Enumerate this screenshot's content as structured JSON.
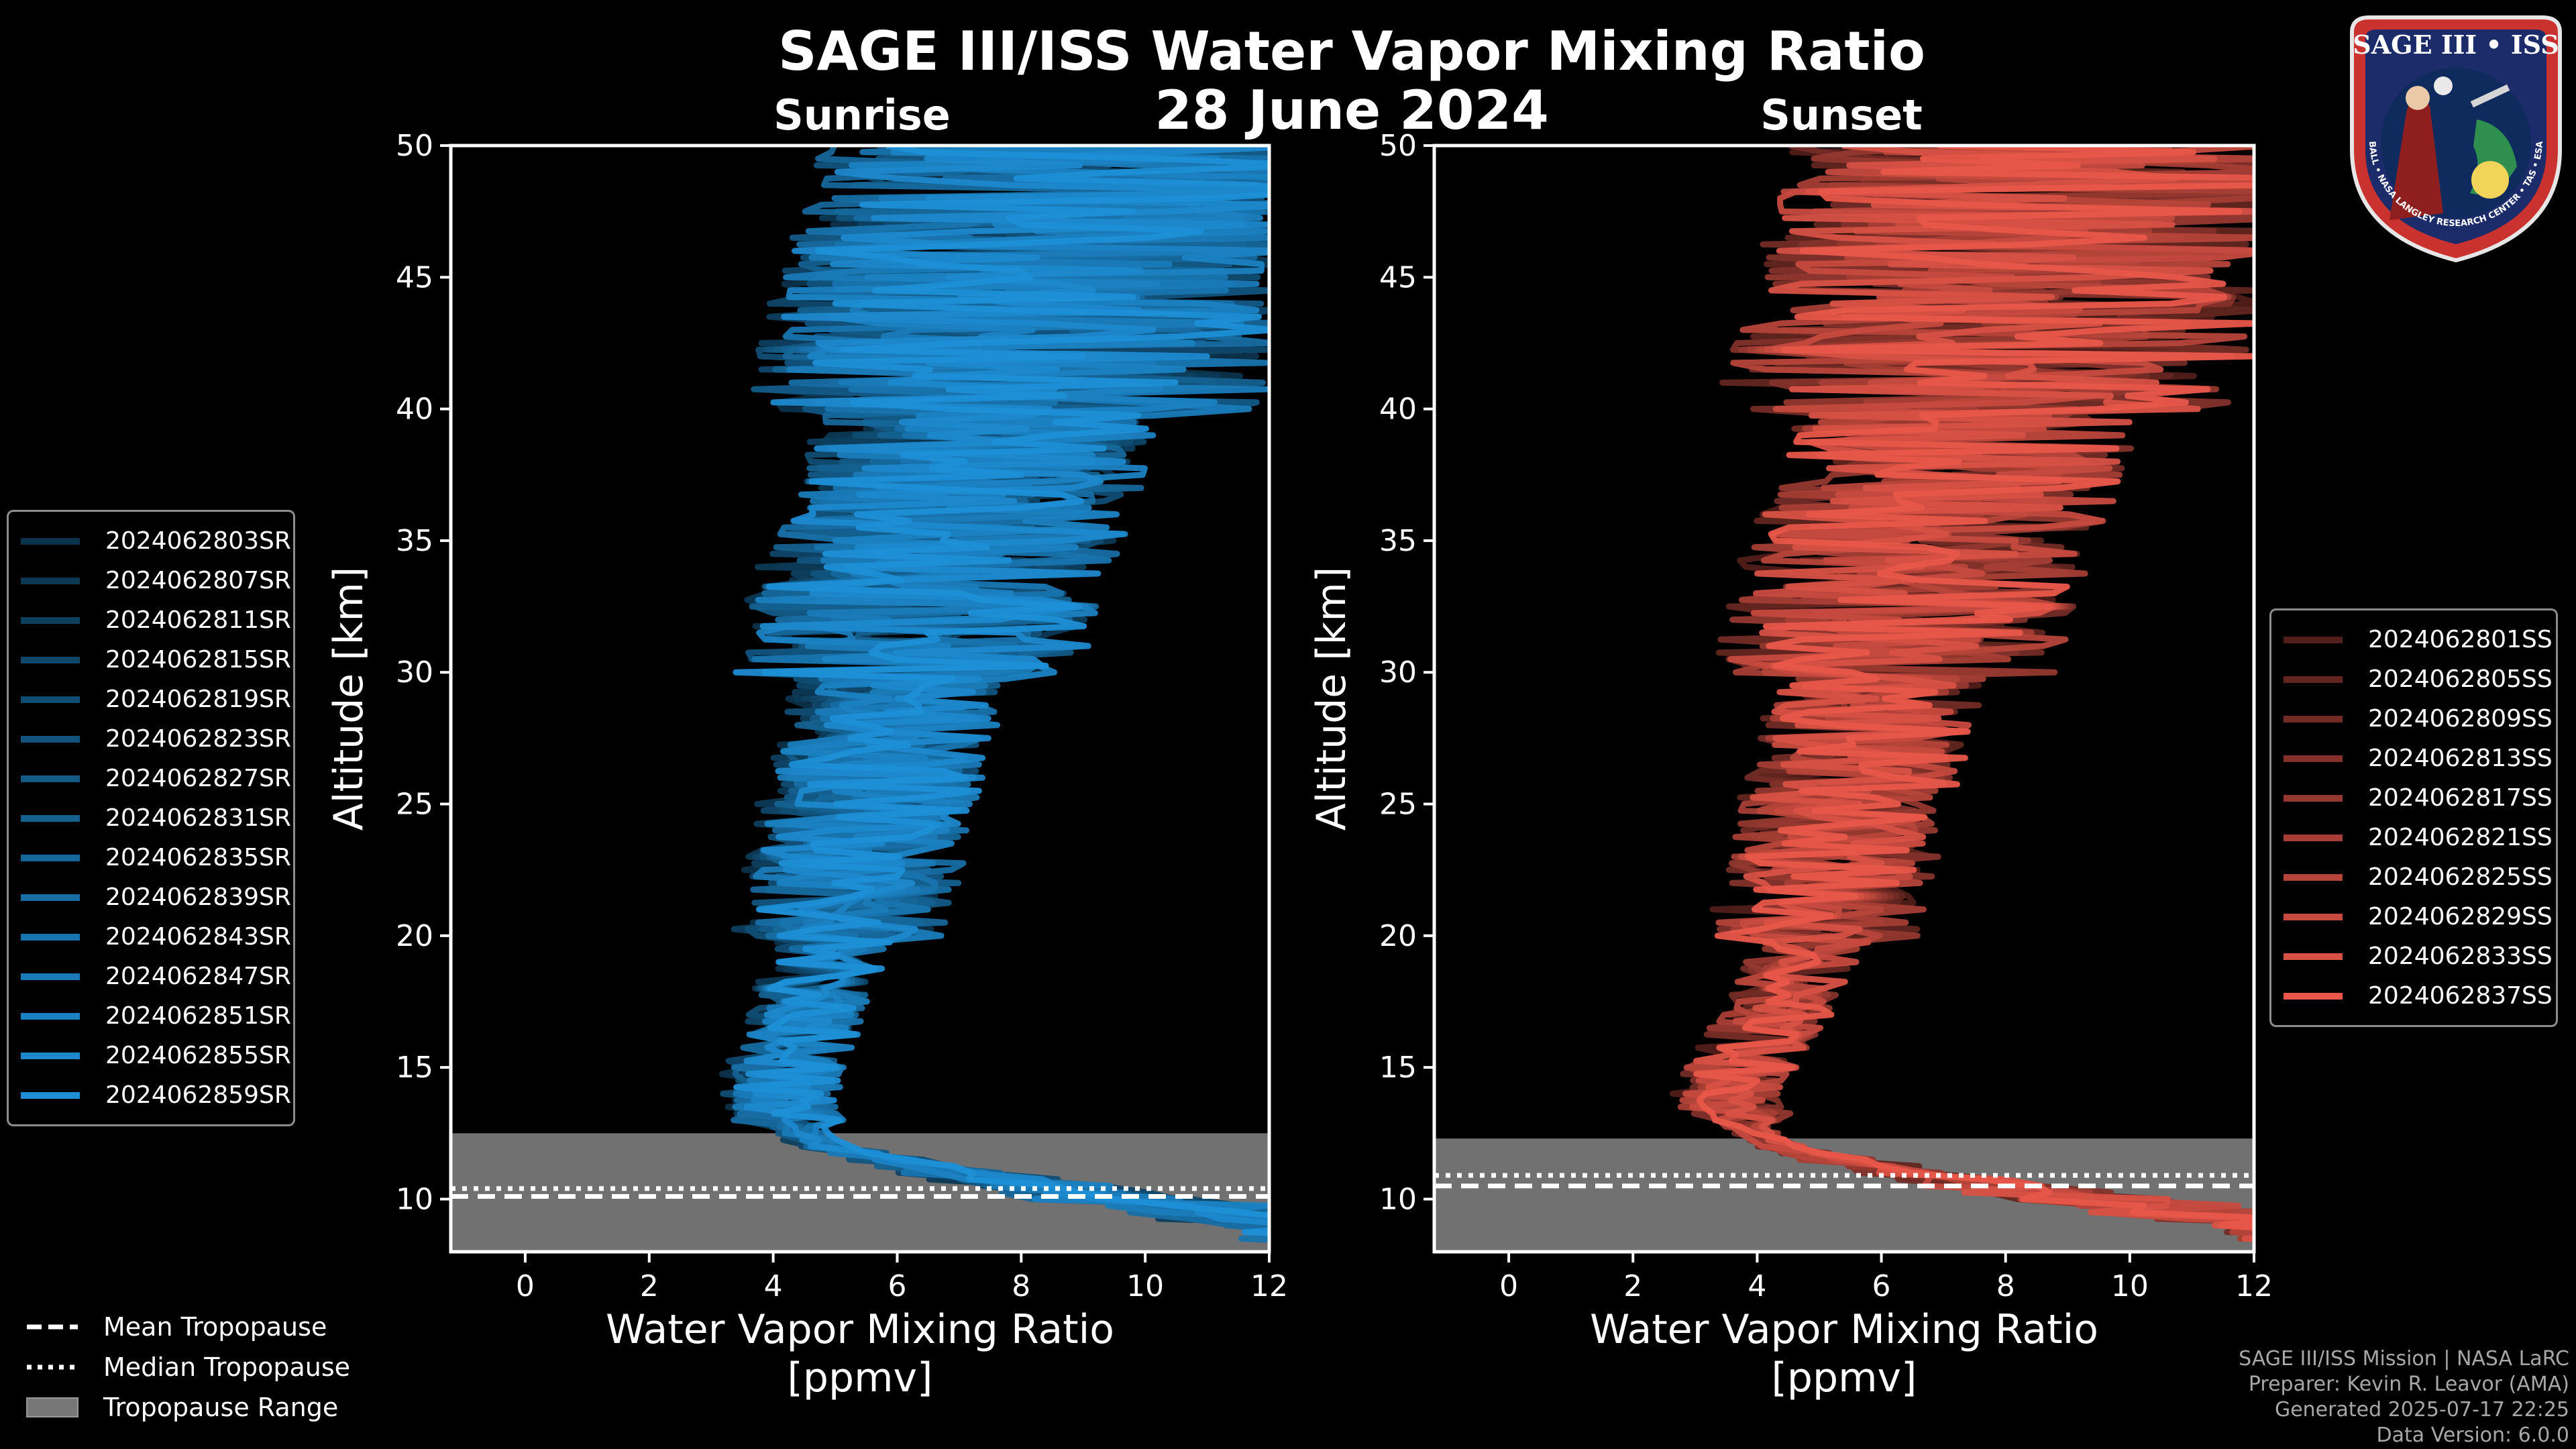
{
  "header": {
    "title": "SAGE III/ISS Water Vapor Mixing Ratio",
    "date": "28 June 2024"
  },
  "badge": {
    "title": "SAGE III • ISS",
    "ring_text": "BALL • NASA LANGLEY RESEARCH CENTER • TAS • ESA"
  },
  "colors": {
    "background": "#000000",
    "sunrise_base": "#1e8fd6",
    "sunset_base": "#e8574a",
    "tropopause_range": "#777777"
  },
  "chart_data": [
    {
      "type": "line",
      "title": "Sunrise",
      "xlabel": "Water Vapor Mixing Ratio [ppmv]",
      "ylabel": "Altitude [km]",
      "xlim": [
        -1.2,
        12
      ],
      "ylim": [
        8,
        50
      ],
      "xticks": [
        0,
        2,
        4,
        6,
        8,
        10,
        12
      ],
      "yticks": [
        10,
        15,
        20,
        25,
        30,
        35,
        40,
        45,
        50
      ],
      "legend_position": "left",
      "typical_profile": {
        "altitude": [
          8,
          9,
          10,
          11,
          12,
          13,
          14,
          15,
          16,
          18,
          20,
          22,
          25,
          28,
          30,
          33,
          35,
          38,
          40,
          43,
          45,
          48,
          50
        ],
        "mixing_ratio": [
          12,
          11,
          8,
          6,
          4.5,
          3.9,
          3.8,
          3.9,
          4.1,
          4.4,
          4.7,
          5.0,
          5.2,
          5.6,
          5.8,
          6.2,
          6.5,
          7.0,
          7.3,
          7.8,
          8.0,
          8.3,
          8.5
        ]
      },
      "tropopause": {
        "mean": 10.1,
        "median": 10.4,
        "range": [
          8,
          12.5
        ]
      },
      "series": [
        {
          "name": "2024062803SR"
        },
        {
          "name": "2024062807SR"
        },
        {
          "name": "2024062811SR"
        },
        {
          "name": "2024062815SR"
        },
        {
          "name": "2024062819SR"
        },
        {
          "name": "2024062823SR"
        },
        {
          "name": "2024062827SR"
        },
        {
          "name": "2024062831SR"
        },
        {
          "name": "2024062835SR"
        },
        {
          "name": "2024062839SR"
        },
        {
          "name": "2024062843SR"
        },
        {
          "name": "2024062847SR"
        },
        {
          "name": "2024062851SR"
        },
        {
          "name": "2024062855SR"
        },
        {
          "name": "2024062859SR"
        }
      ]
    },
    {
      "type": "line",
      "title": "Sunset",
      "xlabel": "Water Vapor Mixing Ratio [ppmv]",
      "ylabel": "Altitude [km]",
      "xlim": [
        -1.2,
        12
      ],
      "ylim": [
        8,
        50
      ],
      "xticks": [
        0,
        2,
        4,
        6,
        8,
        10,
        12
      ],
      "yticks": [
        10,
        15,
        20,
        25,
        30,
        35,
        40,
        45,
        50
      ],
      "legend_position": "right",
      "typical_profile": {
        "altitude": [
          8,
          9,
          10,
          11,
          12,
          13,
          14,
          15,
          16,
          18,
          20,
          22,
          25,
          28,
          30,
          33,
          35,
          38,
          40,
          43,
          45,
          48,
          50
        ],
        "mixing_ratio": [
          12,
          10.5,
          7.5,
          5.5,
          4.0,
          3.4,
          3.3,
          3.4,
          3.7,
          4.2,
          4.6,
          4.9,
          5.1,
          5.5,
          5.8,
          6.1,
          6.4,
          6.9,
          7.2,
          7.6,
          7.9,
          8.2,
          8.4
        ]
      },
      "tropopause": {
        "mean": 10.5,
        "median": 10.9,
        "range": [
          8,
          12.3
        ]
      },
      "series": [
        {
          "name": "2024062801SS"
        },
        {
          "name": "2024062805SS"
        },
        {
          "name": "2024062809SS"
        },
        {
          "name": "2024062813SS"
        },
        {
          "name": "2024062817SS"
        },
        {
          "name": "2024062821SS"
        },
        {
          "name": "2024062825SS"
        },
        {
          "name": "2024062829SS"
        },
        {
          "name": "2024062833SS"
        },
        {
          "name": "2024062837SS"
        }
      ]
    }
  ],
  "tropopause_legend": {
    "mean": "Mean Tropopause",
    "median": "Median Tropopause",
    "range": "Tropopause Range"
  },
  "credits": {
    "line1": "SAGE III/ISS Mission | NASA LaRC",
    "line2": "Preparer: Kevin R. Leavor (AMA)",
    "line3": "Generated 2025-07-17 22:25",
    "line4": "Data Version: 6.0.0"
  }
}
